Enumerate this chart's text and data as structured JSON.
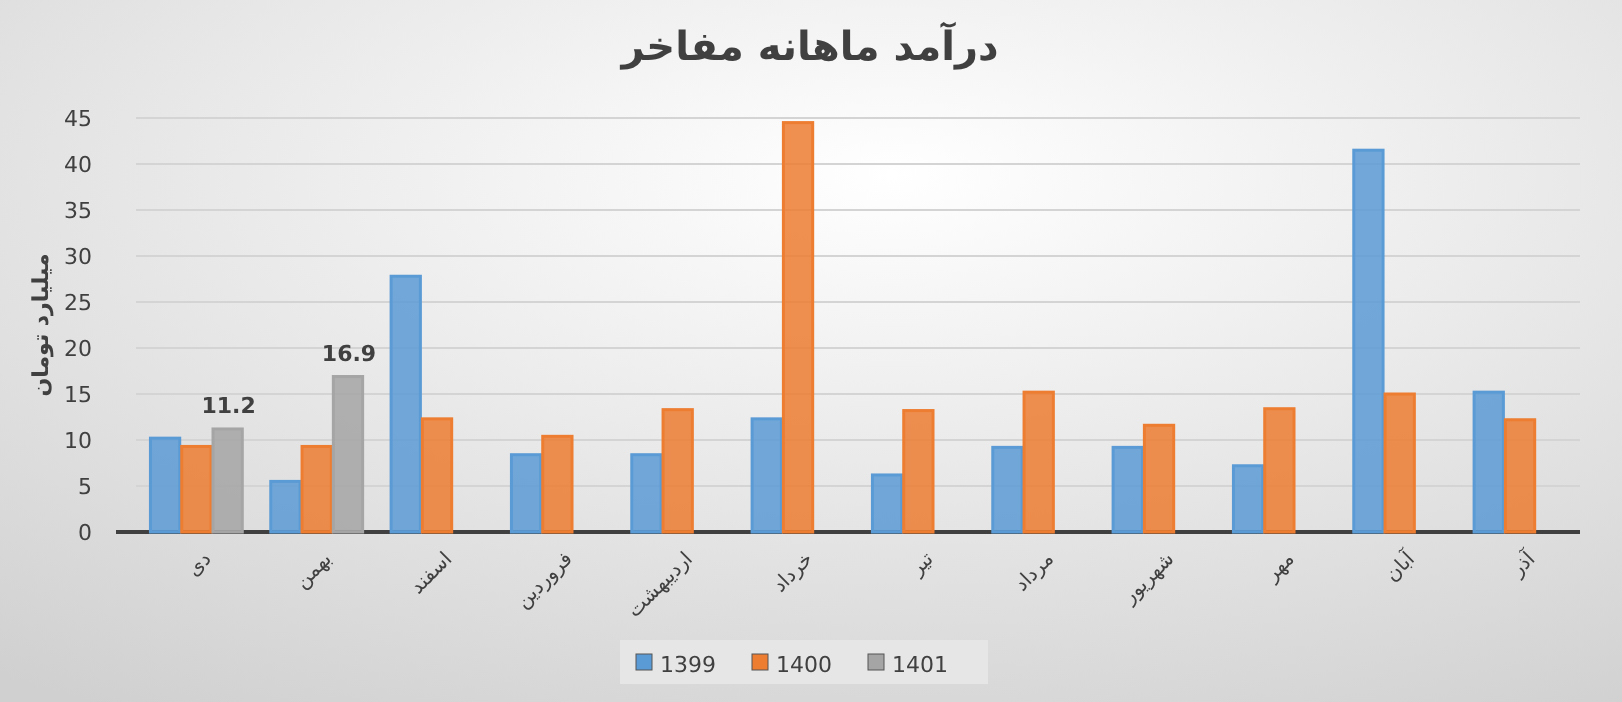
{
  "chart_data": {
    "type": "bar",
    "title": "درآمد ماهانه مفاخر",
    "ylabel": "میلیارد تومان",
    "categories": [
      "دی",
      "بهمن",
      "اسفند",
      "فروردین",
      "اردیبهشت",
      "خرداد",
      "تیر",
      "مرداد",
      "شهریور",
      "مهر",
      "آبان",
      "آذر"
    ],
    "series": [
      {
        "name": "1399",
        "color": "#5b9bd5",
        "values": [
          10.2,
          5.5,
          27.8,
          8.4,
          8.4,
          12.3,
          6.2,
          9.2,
          9.2,
          7.2,
          41.5,
          15.2
        ]
      },
      {
        "name": "1400",
        "color": "#ed7d31",
        "values": [
          9.3,
          9.3,
          12.3,
          10.4,
          13.3,
          44.5,
          13.2,
          15.2,
          11.6,
          13.4,
          15.0,
          12.2
        ]
      },
      {
        "name": "1401",
        "color": "#a5a5a5",
        "values": [
          11.2,
          16.9,
          null,
          null,
          null,
          null,
          null,
          null,
          null,
          null,
          null,
          null
        ],
        "value_labels": [
          "11.2",
          "16.9",
          null,
          null,
          null,
          null,
          null,
          null,
          null,
          null,
          null,
          null
        ]
      }
    ],
    "ylim": [
      0,
      45
    ],
    "yticks": [
      0,
      5,
      10,
      15,
      20,
      25,
      30,
      35,
      40,
      45
    ],
    "grid": "y",
    "legend": "bottom"
  }
}
